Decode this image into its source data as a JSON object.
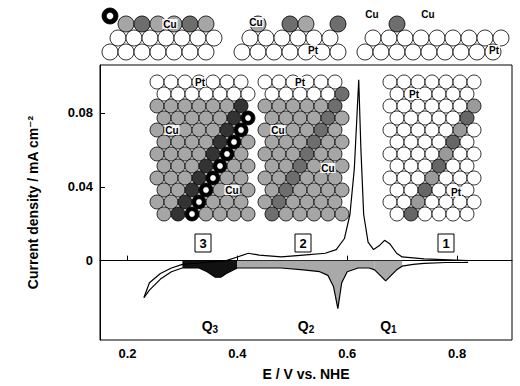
{
  "chart_data": {
    "type": "line",
    "x_label": "E / V vs. NHE",
    "y_label": "Current density / mA cm⁻²",
    "xlim": [
      0.15,
      0.9
    ],
    "xticks": [
      0.2,
      0.4,
      0.6,
      0.8
    ],
    "ylim": [
      -0.043,
      0.106
    ],
    "yticks": [
      0,
      0.04,
      0.08
    ],
    "grid": false,
    "series": [
      {
        "color": "#000000",
        "x": [
          0.23,
          0.24,
          0.26,
          0.28,
          0.3,
          0.34,
          0.38,
          0.4,
          0.42,
          0.44,
          0.48,
          0.52,
          0.56,
          0.58,
          0.595,
          0.605,
          0.613,
          0.618,
          0.621,
          0.625,
          0.63,
          0.638,
          0.648,
          0.658,
          0.668,
          0.678,
          0.69,
          0.7,
          0.74,
          0.82
        ],
        "values": [
          -0.02,
          -0.012,
          -0.007,
          -0.004,
          -0.002,
          -0.001,
          0.0,
          0.002,
          0.004,
          0.003,
          0.002,
          0.003,
          0.004,
          0.006,
          0.012,
          0.025,
          0.05,
          0.08,
          0.098,
          0.06,
          0.025,
          0.01,
          0.006,
          0.008,
          0.011,
          0.009,
          0.004,
          0.002,
          0.001,
          0.0
        ]
      },
      {
        "color": "#000000",
        "x": [
          0.82,
          0.78,
          0.74,
          0.72,
          0.7,
          0.69,
          0.68,
          0.67,
          0.66,
          0.65,
          0.64,
          0.62,
          0.6,
          0.59,
          0.583,
          0.575,
          0.565,
          0.55,
          0.52,
          0.48,
          0.44,
          0.4,
          0.38,
          0.37,
          0.36,
          0.345,
          0.33,
          0.3,
          0.28,
          0.26,
          0.24,
          0.23
        ],
        "values": [
          -0.001,
          -0.001,
          -0.0015,
          -0.002,
          -0.003,
          -0.005,
          -0.008,
          -0.011,
          -0.008,
          -0.005,
          -0.004,
          -0.004,
          -0.006,
          -0.012,
          -0.026,
          -0.014,
          -0.008,
          -0.006,
          -0.005,
          -0.004,
          -0.004,
          -0.004,
          -0.007,
          -0.009,
          -0.009,
          -0.006,
          -0.004,
          -0.004,
          -0.006,
          -0.01,
          -0.016,
          -0.02
        ],
        "regions": [
          {
            "label": "Q3",
            "from": 0.3,
            "to": 0.4,
            "color": "#111111"
          },
          {
            "label": "Q2",
            "from": 0.4,
            "to": 0.65,
            "color": "#a9a9a9"
          },
          {
            "label": "Q1",
            "from": 0.65,
            "to": 0.7,
            "color": "#a9a9a9"
          }
        ]
      }
    ],
    "insets": [
      {
        "number": "3",
        "labels": [
          "Pt",
          "Cu",
          "Cu"
        ]
      },
      {
        "number": "2",
        "labels": [
          "Pt",
          "Cu",
          "Cu"
        ]
      },
      {
        "number": "1",
        "labels": [
          "Pt",
          "Pt"
        ]
      }
    ],
    "side_views": [
      {
        "labels": [
          "Cu"
        ]
      },
      {
        "labels": [
          "Cu",
          "Pt"
        ]
      },
      {
        "labels": [
          "Cu",
          "Cu",
          "Pt"
        ]
      }
    ]
  }
}
